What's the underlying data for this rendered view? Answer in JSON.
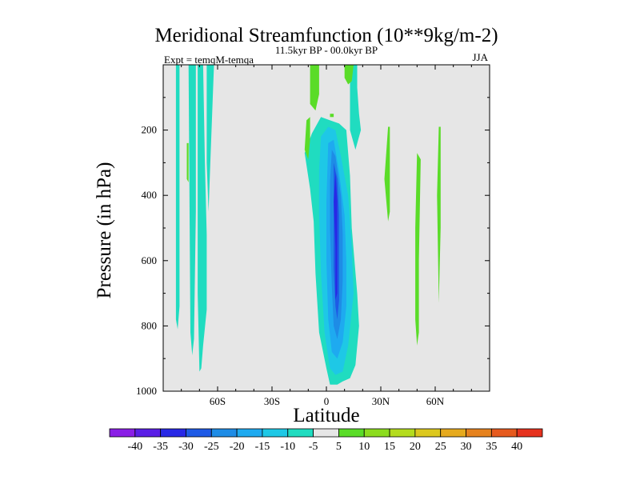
{
  "chart_data": {
    "type": "contour",
    "title": "Meridional Streamfunction (10**9kg/m-2)",
    "left_label": "Expt = temqM-temqa",
    "center_label": "11.5kyr BP - 00.0kyr BP",
    "right_label": "JJA",
    "xlabel": "Latitude",
    "ylabel": "Pressure (in hPa)",
    "xlim": [
      -90,
      90
    ],
    "ylim": [
      0,
      1000
    ],
    "y_inverted": true,
    "x_ticks": [
      {
        "value": -60,
        "label": "60S"
      },
      {
        "value": -30,
        "label": "30S"
      },
      {
        "value": 0,
        "label": "0"
      },
      {
        "value": 30,
        "label": "30N"
      },
      {
        "value": 60,
        "label": "60N"
      }
    ],
    "y_ticks": [
      {
        "value": 200,
        "label": "200"
      },
      {
        "value": 400,
        "label": "400"
      },
      {
        "value": 600,
        "label": "600"
      },
      {
        "value": 800,
        "label": "800"
      },
      {
        "value": 1000,
        "label": "1000"
      }
    ],
    "background_color": "#e6e6e6",
    "colorbar": {
      "labels": [
        "-40",
        "-35",
        "-30",
        "-25",
        "-20",
        "-15",
        "-10",
        "-5",
        "5",
        "10",
        "15",
        "20",
        "25",
        "30",
        "35",
        "40"
      ],
      "colors": [
        "#8a1ee6",
        "#5a1ee6",
        "#2828e6",
        "#1e5ae6",
        "#1e8ce6",
        "#1eaaf0",
        "#1ec8e6",
        "#20dcc0",
        "#e6e6e6",
        "#5adc28",
        "#8cdc1e",
        "#b4dc1e",
        "#dcc81e",
        "#e6aa1e",
        "#e6821e",
        "#e65a1e",
        "#e6321e"
      ]
    },
    "regions": [
      {
        "name": "neg-5-band-a",
        "color": "#20dcc0",
        "points": [
          [
            -83,
            0
          ],
          [
            -81,
            0
          ],
          [
            -81,
            740
          ],
          [
            -82,
            810
          ],
          [
            -83,
            780
          ]
        ]
      },
      {
        "name": "neg-5-band-b1",
        "color": "#20dcc0",
        "points": [
          [
            -76,
            0
          ],
          [
            -72,
            0
          ],
          [
            -72,
            450
          ],
          [
            -73,
            840
          ],
          [
            -74,
            890
          ],
          [
            -75,
            820
          ]
        ]
      },
      {
        "name": "neg-5-band-b2",
        "color": "#20dcc0",
        "points": [
          [
            -71,
            0
          ],
          [
            -68,
            0
          ],
          [
            -67,
            300
          ],
          [
            -66,
            520
          ],
          [
            -66,
            750
          ],
          [
            -68,
            860
          ],
          [
            -69,
            930
          ],
          [
            -70,
            940
          ],
          [
            -71,
            700
          ]
        ]
      },
      {
        "name": "neg-5-band-c",
        "color": "#20dcc0",
        "points": [
          [
            -66,
            0
          ],
          [
            -62,
            0
          ],
          [
            -63,
            150
          ],
          [
            -64,
            300
          ],
          [
            -65,
            450
          ],
          [
            -66,
            300
          ]
        ]
      },
      {
        "name": "neg-5-main",
        "color": "#20dcc0",
        "points": [
          [
            -12,
            270
          ],
          [
            -8,
            210
          ],
          [
            -3,
            160
          ],
          [
            2,
            170
          ],
          [
            7,
            180
          ],
          [
            11,
            200
          ],
          [
            13,
            340
          ],
          [
            14,
            500
          ],
          [
            17,
            700
          ],
          [
            18,
            800
          ],
          [
            16,
            920
          ],
          [
            13,
            960
          ],
          [
            9,
            970
          ],
          [
            6,
            980
          ],
          [
            2,
            980
          ],
          [
            0,
            930
          ],
          [
            -4,
            820
          ],
          [
            -6,
            640
          ],
          [
            -7,
            480
          ],
          [
            -9,
            380
          ]
        ]
      },
      {
        "name": "neg-5-upper",
        "color": "#20dcc0",
        "points": [
          [
            13,
            0
          ],
          [
            17,
            0
          ],
          [
            17,
            70
          ],
          [
            18,
            150
          ],
          [
            19,
            200
          ],
          [
            16,
            260
          ],
          [
            13,
            200
          ]
        ]
      },
      {
        "name": "neg-10-main",
        "color": "#1ec8e6",
        "points": [
          [
            -3,
            220
          ],
          [
            1,
            190
          ],
          [
            5,
            200
          ],
          [
            8,
            280
          ],
          [
            12,
            400
          ],
          [
            14,
            560
          ],
          [
            15,
            700
          ],
          [
            12,
            860
          ],
          [
            9,
            940
          ],
          [
            5,
            950
          ],
          [
            2,
            930
          ],
          [
            -1,
            820
          ],
          [
            -3,
            640
          ],
          [
            -4,
            460
          ],
          [
            -4,
            320
          ]
        ]
      },
      {
        "name": "neg-15-main",
        "color": "#1eaaf0",
        "points": [
          [
            1,
            240
          ],
          [
            4,
            230
          ],
          [
            7,
            330
          ],
          [
            10,
            460
          ],
          [
            11,
            600
          ],
          [
            11,
            740
          ],
          [
            9,
            850
          ],
          [
            6,
            900
          ],
          [
            3,
            880
          ],
          [
            1,
            780
          ],
          [
            0,
            600
          ],
          [
            0,
            420
          ]
        ]
      },
      {
        "name": "neg-20-main",
        "color": "#1e8ce6",
        "points": [
          [
            3,
            260
          ],
          [
            5,
            280
          ],
          [
            8,
            400
          ],
          [
            9,
            520
          ],
          [
            9,
            660
          ],
          [
            8,
            780
          ],
          [
            6,
            840
          ],
          [
            4,
            800
          ],
          [
            3,
            680
          ],
          [
            2,
            500
          ],
          [
            2,
            360
          ]
        ]
      },
      {
        "name": "neg-25-main",
        "color": "#1e5ae6",
        "points": [
          [
            4,
            300
          ],
          [
            6,
            350
          ],
          [
            7,
            460
          ],
          [
            7,
            600
          ],
          [
            7,
            720
          ],
          [
            6,
            780
          ],
          [
            5,
            740
          ],
          [
            4,
            620
          ],
          [
            4,
            470
          ]
        ]
      },
      {
        "name": "neg-30-main",
        "color": "#2828e6",
        "points": [
          [
            5,
            330
          ],
          [
            6,
            420
          ],
          [
            6,
            560
          ],
          [
            6,
            700
          ],
          [
            5,
            720
          ],
          [
            5,
            560
          ],
          [
            4,
            420
          ]
        ]
      },
      {
        "name": "pos-5-upper-left",
        "color": "#5adc28",
        "points": [
          [
            -9,
            0
          ],
          [
            -4,
            0
          ],
          [
            -4,
            90
          ],
          [
            -6,
            140
          ],
          [
            -9,
            120
          ]
        ]
      },
      {
        "name": "pos-5-left-mid",
        "color": "#5adc28",
        "points": [
          [
            -11,
            170
          ],
          [
            -9,
            160
          ],
          [
            -9,
            230
          ],
          [
            -10,
            290
          ],
          [
            -12,
            260
          ]
        ]
      },
      {
        "name": "pos-5-upper-right",
        "color": "#5adc28",
        "points": [
          [
            10,
            0
          ],
          [
            15,
            0
          ],
          [
            14,
            50
          ],
          [
            12,
            60
          ],
          [
            10,
            40
          ]
        ]
      },
      {
        "name": "pos-5-spot",
        "color": "#5adc28",
        "points": [
          [
            2,
            150
          ],
          [
            4,
            150
          ],
          [
            4,
            160
          ],
          [
            2,
            160
          ]
        ]
      },
      {
        "name": "pos-5-right-a",
        "color": "#5adc28",
        "points": [
          [
            34,
            190
          ],
          [
            35,
            190
          ],
          [
            35,
            450
          ],
          [
            34,
            480
          ],
          [
            32,
            350
          ]
        ]
      },
      {
        "name": "pos-5-right-b",
        "color": "#5adc28",
        "points": [
          [
            50,
            270
          ],
          [
            52,
            290
          ],
          [
            51,
            600
          ],
          [
            51,
            820
          ],
          [
            50,
            860
          ],
          [
            49,
            780
          ],
          [
            49,
            500
          ]
        ]
      },
      {
        "name": "pos-5-right-c",
        "color": "#5adc28",
        "points": [
          [
            62,
            190
          ],
          [
            63,
            190
          ],
          [
            63,
            500
          ],
          [
            62,
            730
          ],
          [
            61,
            400
          ]
        ]
      },
      {
        "name": "pos-5-sliver",
        "color": "#5adc28",
        "points": [
          [
            -77,
            240
          ],
          [
            -76,
            240
          ],
          [
            -76,
            360
          ],
          [
            -77,
            350
          ]
        ]
      }
    ]
  }
}
